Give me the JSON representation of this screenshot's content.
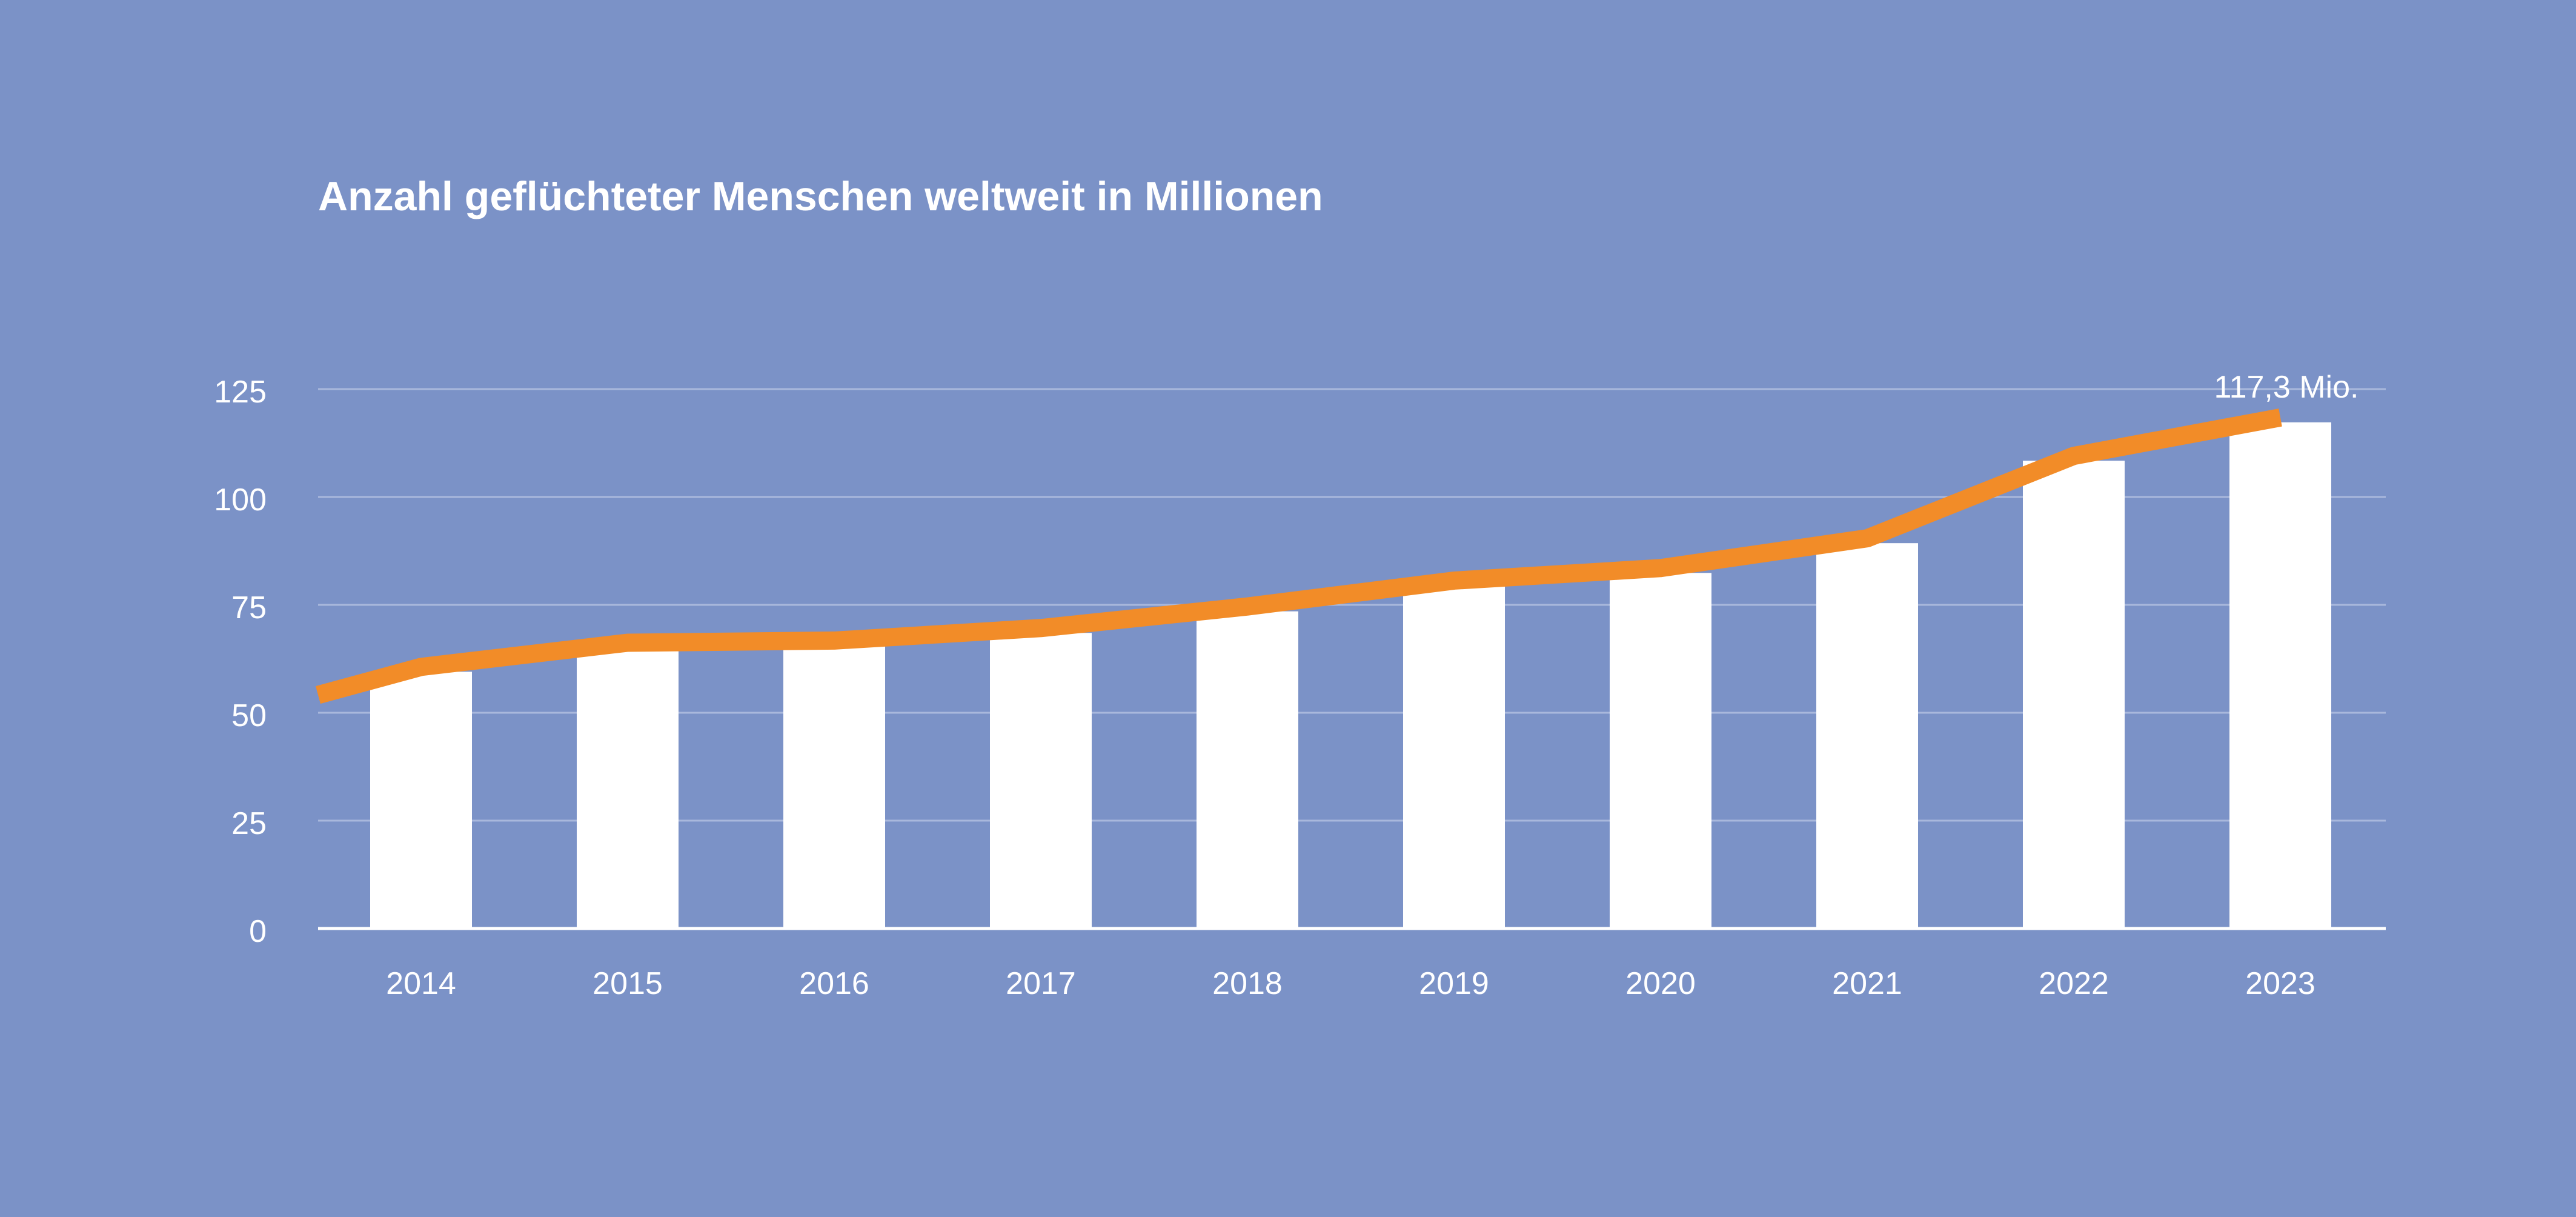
{
  "chart_data": {
    "type": "bar",
    "title": "Anzahl geflüchteter Menschen weltweit in Millionen",
    "categories": [
      "2014",
      "2015",
      "2016",
      "2017",
      "2018",
      "2019",
      "2020",
      "2021",
      "2022",
      "2023"
    ],
    "series": [
      {
        "values": [
          59.5,
          65.1,
          65.6,
          68.5,
          73.5,
          79.5,
          82.4,
          89.3,
          108.4,
          117.3
        ]
      }
    ],
    "trend_line": {
      "values": [
        53.0,
        59.5,
        65.1,
        65.6,
        68.5,
        73.5,
        79.5,
        82.4,
        89.3,
        108.4,
        117.3
      ]
    },
    "yticks": [
      "0",
      "25",
      "50",
      "75",
      "100",
      "125"
    ],
    "ylim": [
      0,
      125
    ],
    "grid": true,
    "annotation": "117,3 Mio.",
    "colors": {
      "background": "#7b92c7",
      "bars": "#ffffff",
      "trend_line": "#f28c28",
      "grid": "#a9b8dc",
      "text": "#ffffff"
    }
  }
}
